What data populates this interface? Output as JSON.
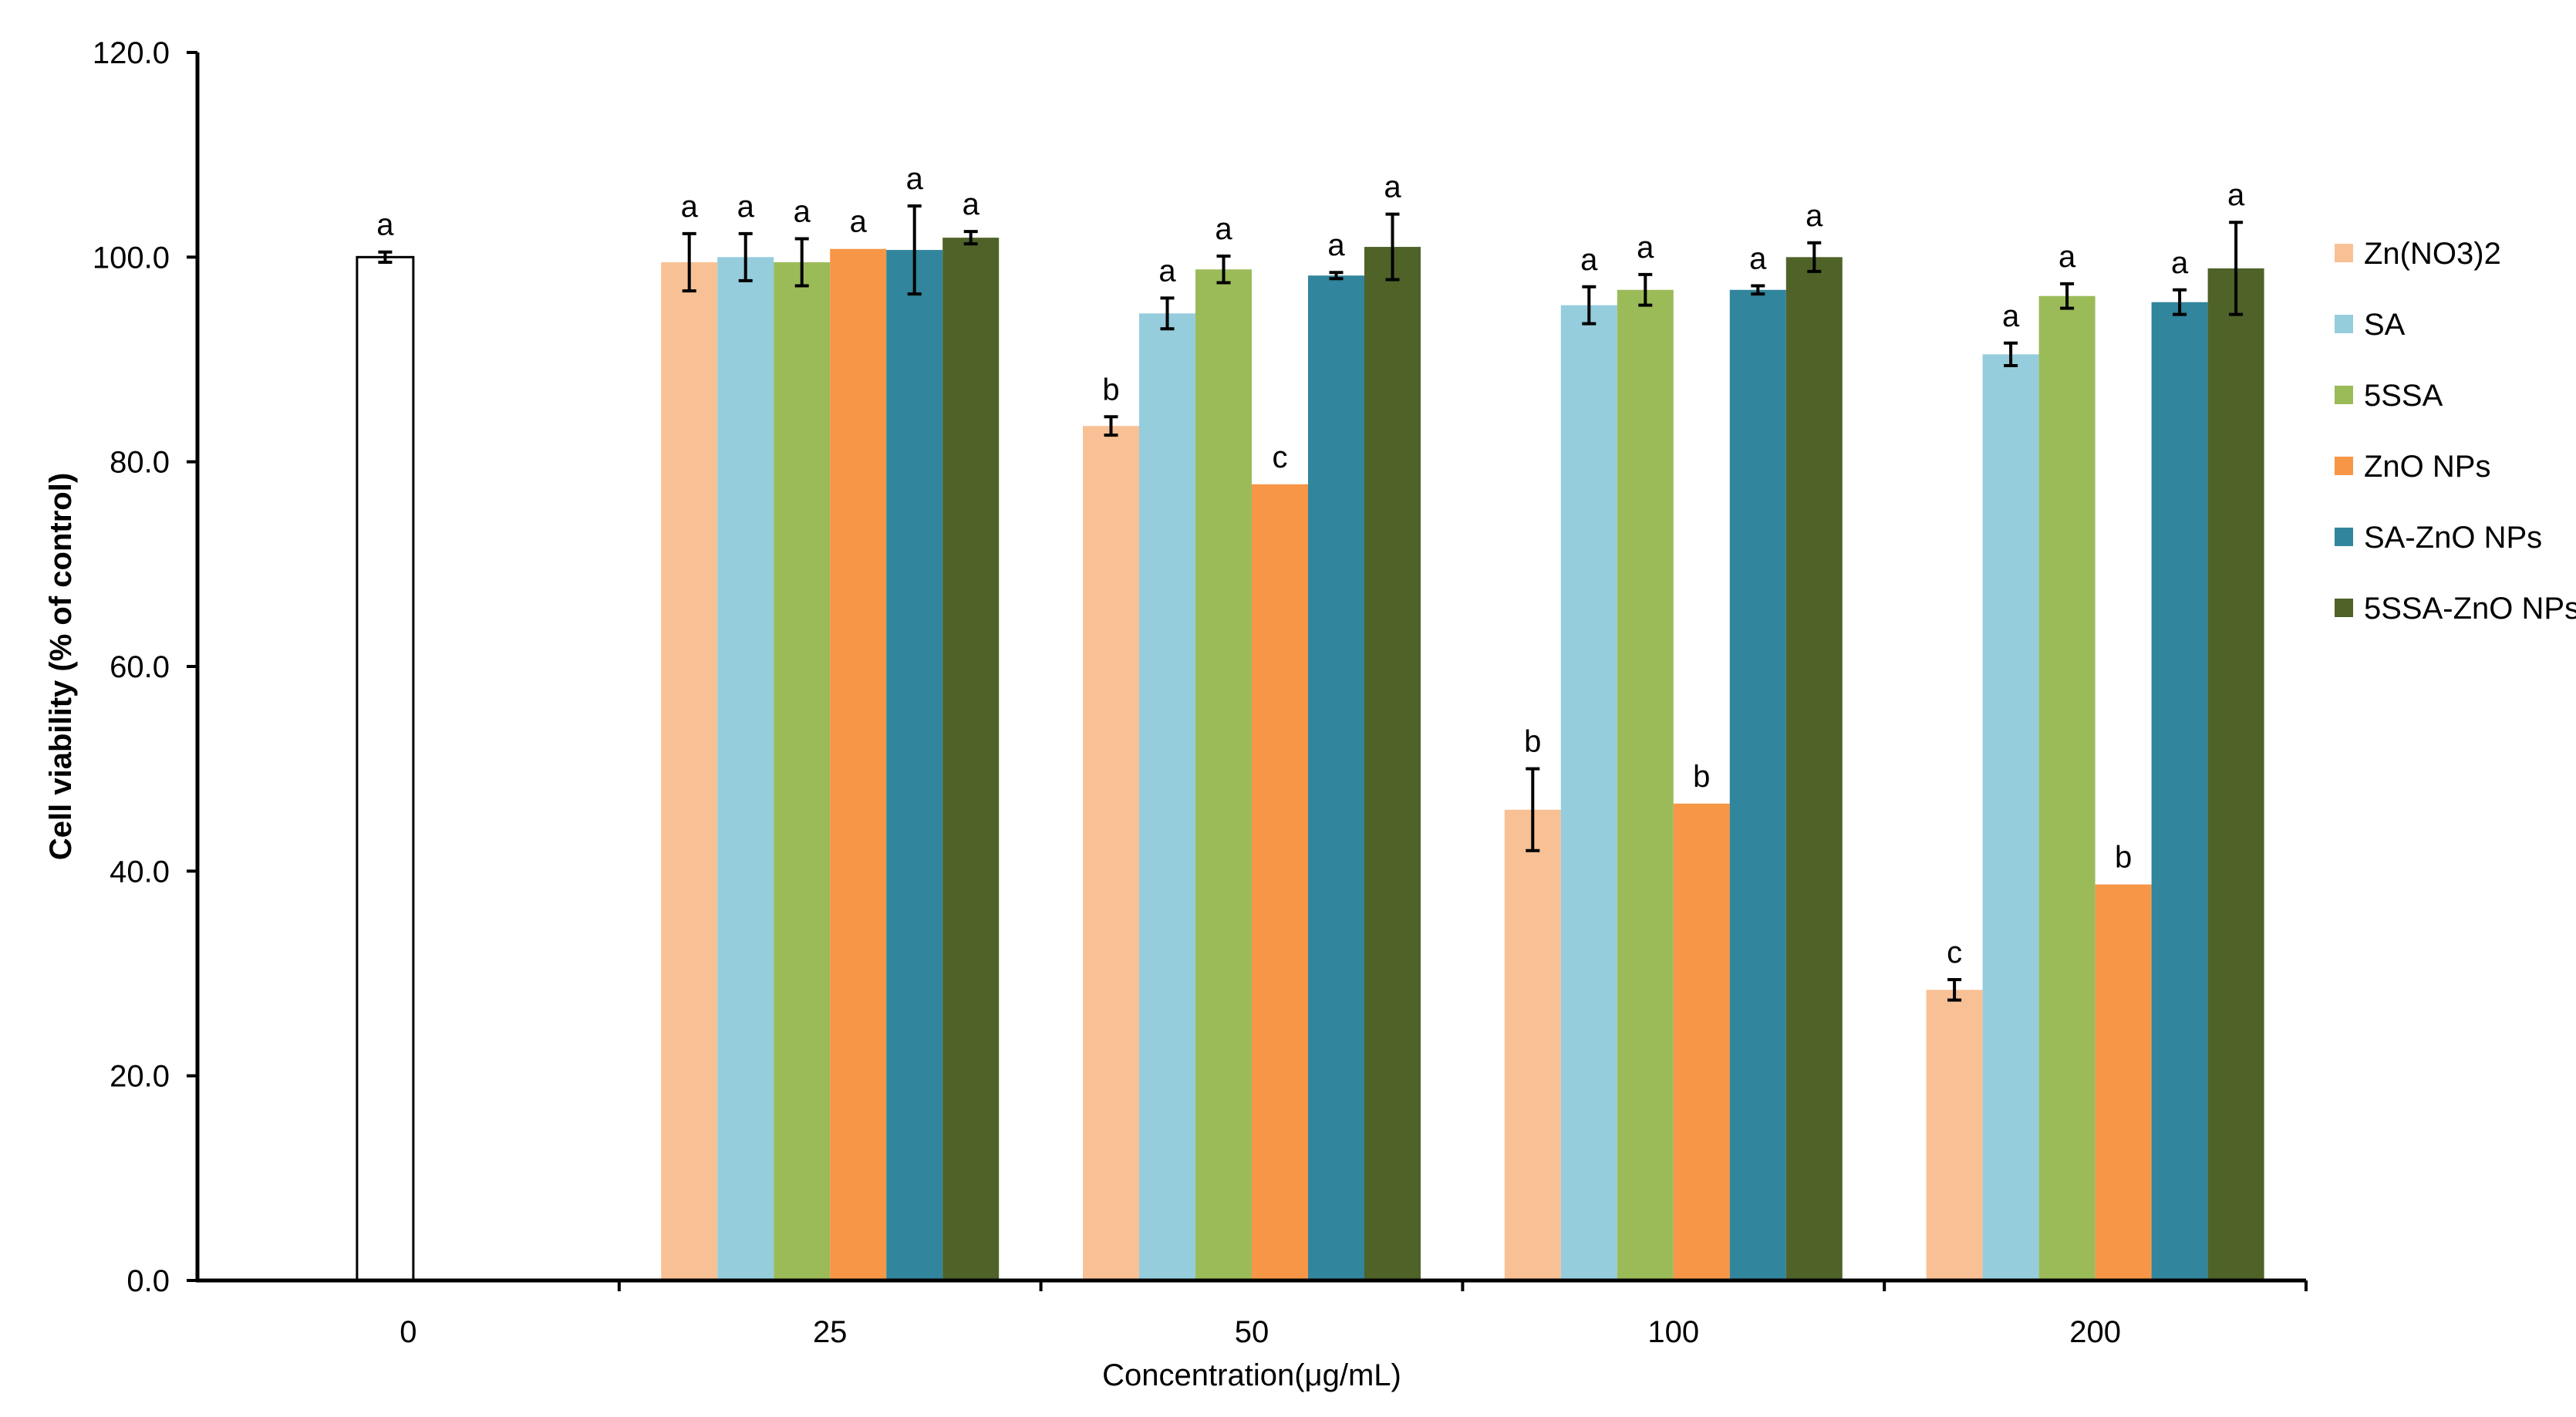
{
  "chart_data": {
    "type": "bar",
    "title": "",
    "xlabel": "Concentration(μg/mL)",
    "ylabel": "Cell viability (% of control)",
    "ylim": [
      0,
      120
    ],
    "yticks": [
      "0.0",
      "20.0",
      "40.0",
      "60.0",
      "80.0",
      "100.0",
      "120.0"
    ],
    "ytick_values": [
      0,
      20,
      40,
      60,
      80,
      100,
      120
    ],
    "categories": [
      "0",
      "25",
      "50",
      "100",
      "200"
    ],
    "grid": false,
    "legend_position": "right",
    "control": {
      "category": "0",
      "value": 100.0,
      "error": 0.5,
      "label": "a",
      "fill": "#ffffff",
      "stroke": "#000000"
    },
    "series": [
      {
        "name": "Zn(NO3)2",
        "color": "#F8C195",
        "values": [
          null,
          99.5,
          83.5,
          46.0,
          28.4
        ],
        "errors": [
          null,
          2.8,
          0.9,
          4.0,
          1.0
        ],
        "labels": [
          null,
          "a",
          "b",
          "b",
          "c"
        ]
      },
      {
        "name": "SA",
        "color": "#95CDDD",
        "values": [
          null,
          100.0,
          94.5,
          95.3,
          90.5
        ],
        "errors": [
          null,
          2.3,
          1.5,
          1.8,
          1.1
        ],
        "labels": [
          null,
          "a",
          "a",
          "a",
          "a"
        ]
      },
      {
        "name": "5SSA",
        "color": "#9BBB59",
        "values": [
          null,
          99.5,
          98.8,
          96.8,
          96.2
        ],
        "errors": [
          null,
          2.3,
          1.3,
          1.5,
          1.2
        ],
        "labels": [
          null,
          "a",
          "a",
          "a",
          "a"
        ]
      },
      {
        "name": "ZnO NPs",
        "color": "#F79646",
        "values": [
          null,
          100.8,
          77.8,
          46.6,
          38.7
        ],
        "errors": [
          null,
          0,
          0,
          0,
          0
        ],
        "labels": [
          null,
          "a",
          "c",
          "b",
          "b"
        ]
      },
      {
        "name": "SA-ZnO NPs",
        "color": "#31859C",
        "values": [
          null,
          100.7,
          98.2,
          96.8,
          95.6
        ],
        "errors": [
          null,
          4.3,
          0.3,
          0.4,
          1.2
        ],
        "labels": [
          null,
          "a",
          "a",
          "a",
          "a"
        ]
      },
      {
        "name": "5SSA-ZnO NPs",
        "color": "#4F6228",
        "values": [
          null,
          101.9,
          101.0,
          100.0,
          98.9
        ],
        "errors": [
          null,
          0.6,
          3.2,
          1.4,
          4.5
        ],
        "labels": [
          null,
          "a",
          "a",
          "a",
          "a"
        ]
      }
    ]
  }
}
